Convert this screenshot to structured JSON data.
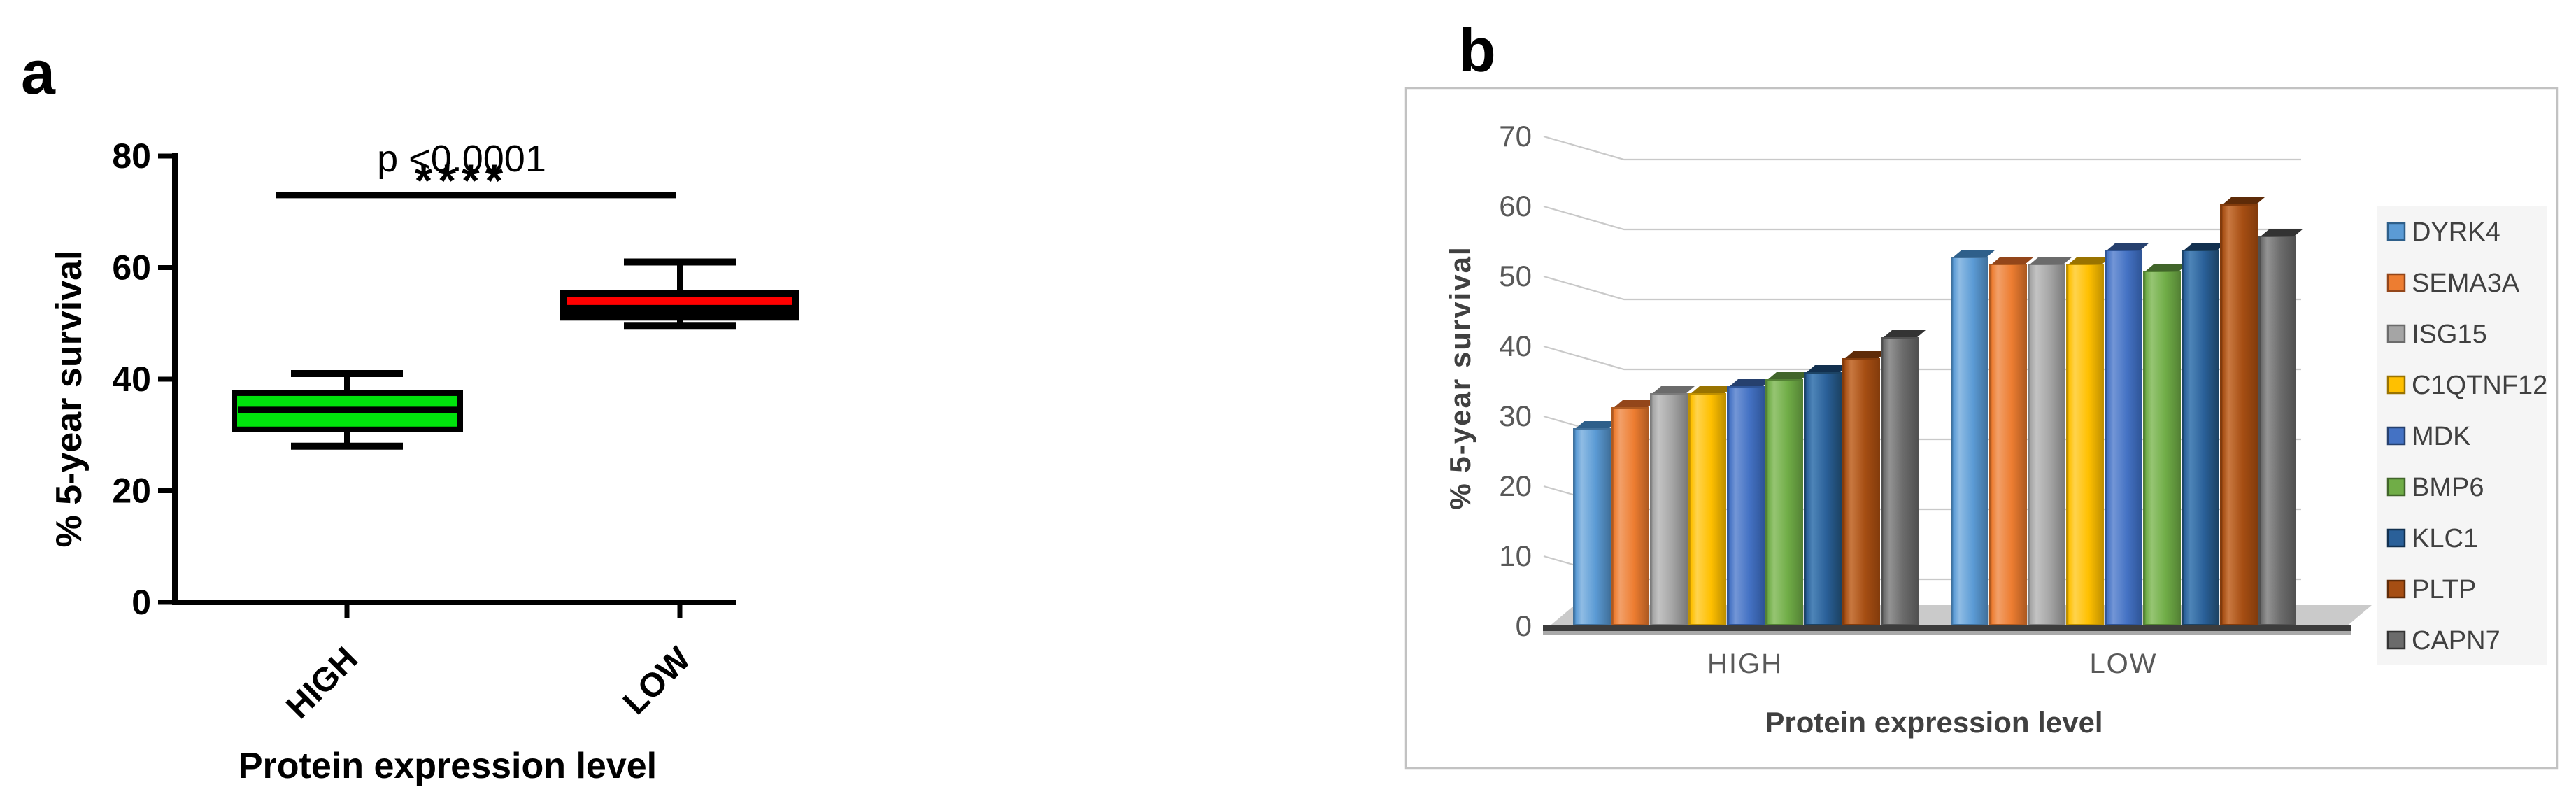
{
  "panel_a": {
    "label": "a",
    "significance": {
      "p_text": "p <0.0001",
      "stars": "****"
    }
  },
  "panel_b": {
    "label": "b"
  },
  "chart_data": [
    {
      "type": "box",
      "panel": "a",
      "title": "",
      "ylabel": "% 5-year survival",
      "xlabel": "Protein expression level",
      "ylim": [
        0,
        80
      ],
      "yticks": [
        0,
        20,
        40,
        60,
        80
      ],
      "categories": [
        "HIGH",
        "LOW"
      ],
      "series": [
        {
          "name": "HIGH",
          "min": 28,
          "q1": 31,
          "median": 34.5,
          "q3": 37.5,
          "max": 41,
          "box_fill": "#00E40C",
          "median_color": "#000000"
        },
        {
          "name": "LOW",
          "min": 49.5,
          "q1": 51,
          "median": 54,
          "q3": 55.5,
          "max": 61,
          "box_fill": "#000000",
          "median_color": "#FF0000"
        }
      ],
      "annotation": {
        "p_text": "p <0.0001",
        "stars": "****",
        "y_value": 73
      }
    },
    {
      "type": "bar",
      "panel": "b",
      "title": "",
      "ylabel": "% 5-year survival",
      "xlabel": "Protein expression level",
      "ylim": [
        0,
        70
      ],
      "ytick_step": 10,
      "yticks": [
        0,
        10,
        20,
        30,
        40,
        50,
        60,
        70
      ],
      "categories": [
        "HIGH",
        "LOW"
      ],
      "legend_position": "right",
      "grid": true,
      "style": "excel-3d",
      "series": [
        {
          "name": "DYRK4",
          "values": [
            28,
            52.5
          ],
          "color": "#5B9BD5",
          "light": "#8FBCE4",
          "dark": "#2E5F8A",
          "border": "#41719C"
        },
        {
          "name": "SEMA3A",
          "values": [
            31,
            51.5
          ],
          "color": "#ED7D31",
          "light": "#F2A069",
          "dark": "#93461A",
          "border": "#AE5A21"
        },
        {
          "name": "ISG15",
          "values": [
            33,
            51.5
          ],
          "color": "#A5A5A5",
          "light": "#C3C3C3",
          "dark": "#6B6B6B",
          "border": "#7B7B7B"
        },
        {
          "name": "C1QTNF12",
          "values": [
            33,
            51.5
          ],
          "color": "#FFC000",
          "light": "#FFD34D",
          "dark": "#997300",
          "border": "#BF9000"
        },
        {
          "name": "MDK",
          "values": [
            34,
            53.5
          ],
          "color": "#4472C4",
          "light": "#7396D6",
          "dark": "#26406E",
          "border": "#2F5597"
        },
        {
          "name": "BMP6",
          "values": [
            35,
            50.5
          ],
          "color": "#70AD47",
          "light": "#96C573",
          "dark": "#41652A",
          "border": "#548235"
        },
        {
          "name": "KLC1",
          "values": [
            36,
            53.5
          ],
          "color": "#2A6099",
          "light": "#4E85B8",
          "dark": "#12304F",
          "border": "#1C4364"
        },
        {
          "name": "PLTP",
          "values": [
            38,
            60
          ],
          "color": "#A64E13",
          "light": "#C97941",
          "dark": "#5E2B08",
          "border": "#843C0C"
        },
        {
          "name": "CAPN7",
          "values": [
            41,
            55.5
          ],
          "color": "#6B6B6B",
          "light": "#939393",
          "dark": "#333333",
          "border": "#515151"
        }
      ]
    }
  ]
}
